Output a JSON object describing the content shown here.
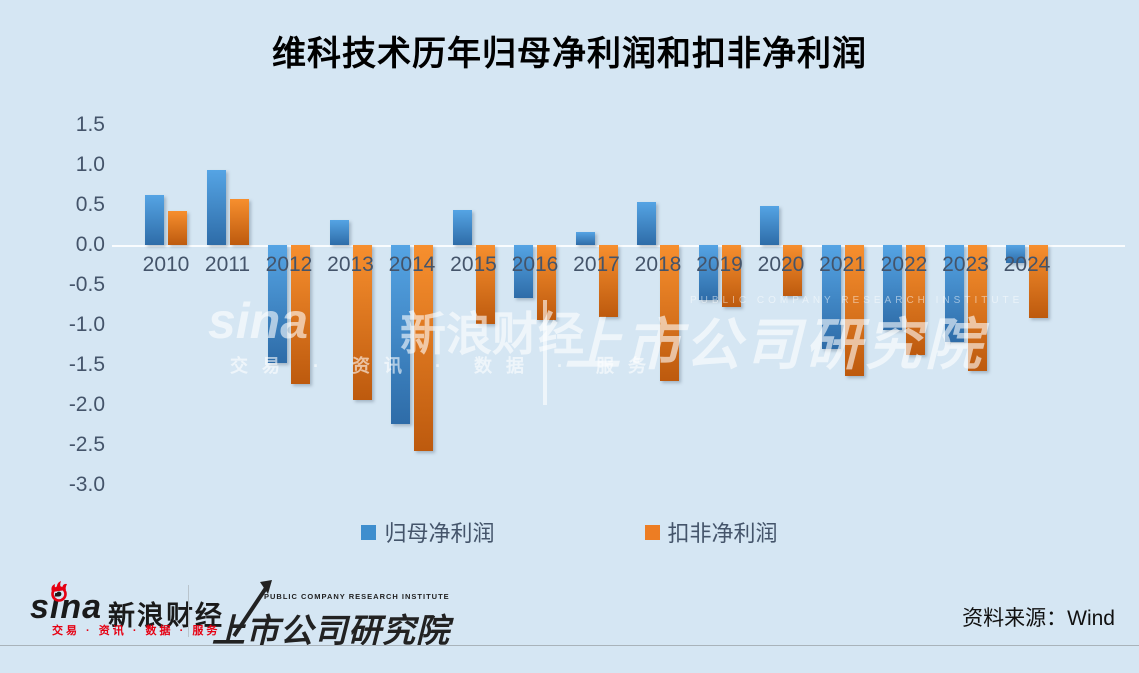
{
  "title": "维科技术历年归母净利润和扣非净利润",
  "chart_data": {
    "type": "bar",
    "categories": [
      "2010",
      "2011",
      "2012",
      "2013",
      "2014",
      "2015",
      "2016",
      "2017",
      "2018",
      "2019",
      "2020",
      "2021",
      "2022",
      "2023",
      "2024"
    ],
    "series": [
      {
        "name": "归母净利润",
        "color": "#3e8ece",
        "values": [
          0.62,
          0.94,
          -1.47,
          0.31,
          -2.24,
          0.44,
          -0.66,
          0.16,
          0.54,
          -0.69,
          0.49,
          -1.3,
          -1.06,
          -1.21,
          -0.22
        ]
      },
      {
        "name": "扣非净利润",
        "color": "#ed7d23",
        "values": [
          0.43,
          0.57,
          -1.74,
          -1.94,
          -2.57,
          -0.99,
          -0.94,
          -0.9,
          -1.7,
          -0.78,
          -0.64,
          -1.64,
          -1.37,
          -1.58,
          -0.91
        ]
      }
    ],
    "title": "维科技术历年归母净利润和扣非净利润",
    "xlabel": "",
    "ylabel": "",
    "ylim": [
      -3.0,
      1.5
    ],
    "yticks": [
      "1.5",
      "1.0",
      "0.5",
      "0.0",
      "-0.5",
      "-1.0",
      "-1.5",
      "-2.0",
      "-2.5",
      "-3.0"
    ],
    "grid": "zero-baseline-only",
    "legend_position": "bottom"
  },
  "legend": {
    "item1": "归母净利润",
    "item2": "扣非净利润"
  },
  "watermark": {
    "sina_latin": "sina",
    "sina_cn": "新浪财经",
    "sina_sub": "交易 · 资讯 · 数据 · 服务",
    "divider": "",
    "institute_en": "PUBLIC COMPANY RESEARCH INSTITUTE",
    "institute_cn": "上市公司研究院"
  },
  "footer": {
    "sina_latin": "sina",
    "sina_cn": "新浪财经",
    "sina_tagline": "交易 · 资讯 · 数据 · 服务",
    "institute_en": "PUBLIC COMPANY RESEARCH INSTITUTE",
    "institute_cn": "上市公司研究院",
    "source": "资料来源：Wind"
  },
  "colors": {
    "background": "#d5e6f3",
    "bar_blue_top": "#55a4e4",
    "bar_blue_bottom": "#2e6ca8",
    "bar_orange_top": "#f78f2e",
    "bar_orange_bottom": "#bd5a0e",
    "axis_text": "#44546a",
    "sina_red": "#e60012",
    "title_text": "#000000"
  }
}
